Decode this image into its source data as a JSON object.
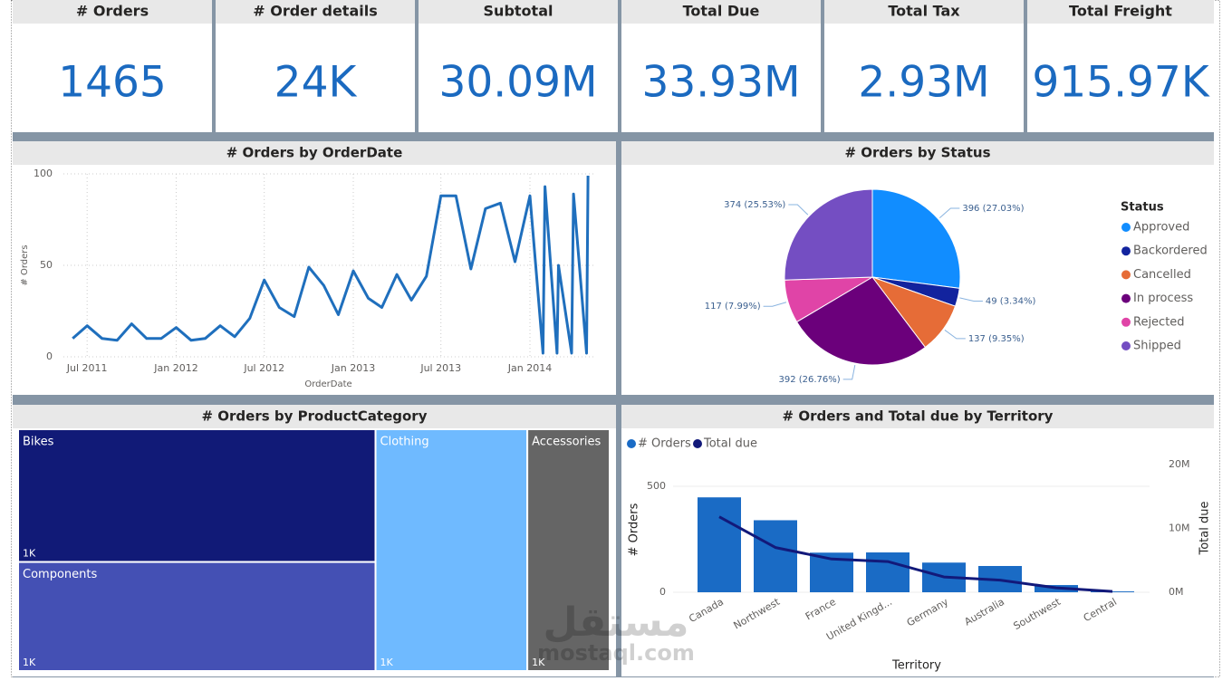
{
  "kpis": [
    {
      "title": "# Orders",
      "value": "1465"
    },
    {
      "title": "# Order details",
      "value": "24K"
    },
    {
      "title": "Subtotal",
      "value": "30.09M"
    },
    {
      "title": "Total Due",
      "value": "33.93M"
    },
    {
      "title": "Total Tax",
      "value": "2.93M"
    },
    {
      "title": "Total Freight",
      "value": "915.97K"
    }
  ],
  "chart_data": [
    {
      "type": "line",
      "title": "# Orders by OrderDate",
      "x_label": "OrderDate",
      "y_label": "# Orders",
      "color": "#1f6fbd",
      "grid": true,
      "x": [
        "2011-06-01",
        "2011-07-01",
        "2011-08-01",
        "2011-09-01",
        "2011-10-01",
        "2011-11-01",
        "2011-12-01",
        "2012-01-01",
        "2012-02-01",
        "2012-03-01",
        "2012-04-01",
        "2012-05-01",
        "2012-06-01",
        "2012-07-01",
        "2012-08-01",
        "2012-09-01",
        "2012-10-01",
        "2012-11-01",
        "2012-12-01",
        "2013-01-01",
        "2013-02-01",
        "2013-03-01",
        "2013-04-01",
        "2013-05-01",
        "2013-06-01",
        "2013-07-01",
        "2013-08-01",
        "2013-09-01",
        "2013-10-01",
        "2013-11-01",
        "2013-12-01",
        "2014-01-01",
        "2014-01-28",
        "2014-02-01",
        "2014-02-26",
        "2014-03-01",
        "2014-03-28",
        "2014-04-01",
        "2014-04-28",
        "2014-05-01"
      ],
      "values": [
        10,
        17,
        10,
        9,
        18,
        10,
        10,
        16,
        9,
        10,
        17,
        11,
        21,
        42,
        27,
        22,
        49,
        39,
        23,
        47,
        32,
        27,
        45,
        31,
        44,
        88,
        88,
        48,
        81,
        84,
        52,
        88,
        2,
        93,
        2,
        50,
        2,
        89,
        2,
        99
      ],
      "xlim": [
        "2011-05-13",
        "2014-05-12"
      ],
      "xticks": [
        {
          "value": "2011-07-01",
          "label": "Jul 2011"
        },
        {
          "value": "2012-01-01",
          "label": "Jan 2012"
        },
        {
          "value": "2012-07-01",
          "label": "Jul 2012"
        },
        {
          "value": "2013-01-01",
          "label": "Jan 2013"
        },
        {
          "value": "2013-07-01",
          "label": "Jul 2013"
        },
        {
          "value": "2014-01-01",
          "label": "Jan 2014"
        }
      ],
      "ylim": [
        0,
        100
      ],
      "yticks": [
        0,
        50,
        100
      ]
    },
    {
      "type": "pie",
      "title": "# Orders by Status",
      "legend_title": "Status",
      "legend": "right",
      "categories": [
        "Approved",
        "Backordered",
        "Cancelled",
        "In process",
        "Rejected",
        "Shipped"
      ],
      "values": [
        396,
        49,
        137,
        392,
        117,
        374
      ],
      "value_labels": [
        "396 (27.03%)",
        "49 (3.34%)",
        "137 (9.35%)",
        "392 (26.76%)",
        "117 (7.99%)",
        "374 (25.53%)"
      ],
      "colors": [
        "#118dff",
        "#12239e",
        "#e66c37",
        "#6b007b",
        "#e044a7",
        "#744ec2"
      ]
    },
    {
      "type": "treemap",
      "title": "# Orders by ProductCategory",
      "categories": [
        "Bikes",
        "Components",
        "Clothing",
        "Accessories"
      ],
      "values": [
        1375,
        1130,
        1064,
        577
      ],
      "value_labels": [
        "1K",
        "1K",
        "1K",
        "1K"
      ],
      "colors": [
        "#111a77",
        "#4450b4",
        "#6fbaff",
        "#656565"
      ]
    },
    {
      "type": "combo",
      "title": "# Orders and Total due by Territory",
      "x_label": "Territory",
      "y_label": "# Orders",
      "y2_label": "Total due",
      "legend": "top-left",
      "categories": [
        "Canada",
        "Northwest",
        "France",
        "United Kingd...",
        "Germany",
        "Australia",
        "Southwest",
        "Central"
      ],
      "series": [
        {
          "name": "# Orders",
          "type": "bar",
          "color": "#1a6bc5",
          "values": [
            448,
            340,
            187,
            188,
            140,
            124,
            34,
            4
          ]
        },
        {
          "name": "Total due",
          "type": "line",
          "axis": "y2",
          "color": "#12197a",
          "values": [
            11800000,
            7000000,
            5200000,
            4800000,
            2400000,
            1900000,
            700000,
            130000
          ]
        }
      ],
      "ylim": [
        0,
        637
      ],
      "yticks": [
        0,
        500
      ],
      "y2lim": [
        0,
        21100000
      ],
      "y2ticks": [
        {
          "value": 0,
          "label": "0M"
        },
        {
          "value": 10000000,
          "label": "10M"
        },
        {
          "value": 20000000,
          "label": "20M"
        }
      ]
    }
  ],
  "watermark": {
    "arabic": "مستقل",
    "latin": "mostaql.com"
  }
}
